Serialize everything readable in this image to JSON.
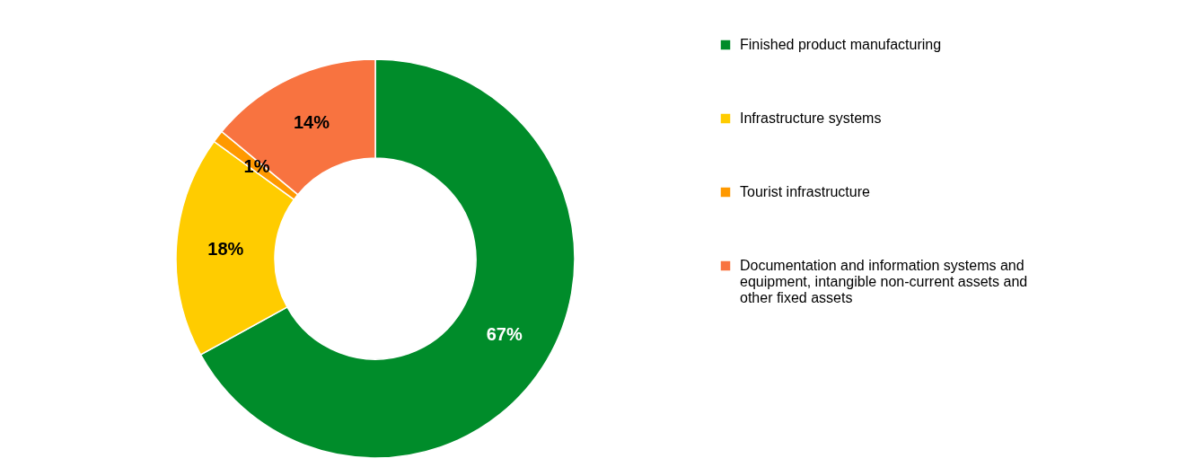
{
  "chart_data": {
    "type": "donut",
    "categories": [
      "Finished product manufacturing",
      "Infrastructure systems",
      "Tourist infrastructure",
      "Documentation and information systems and equipment, intangible non-current assets and other fixed assets"
    ],
    "values": [
      67,
      18,
      1,
      14
    ],
    "colors": [
      "#008c2a",
      "#ffcc00",
      "#ff9900",
      "#f87340"
    ],
    "value_labels": [
      "67%",
      "18%",
      "1%",
      "14%"
    ],
    "legend": "right"
  }
}
